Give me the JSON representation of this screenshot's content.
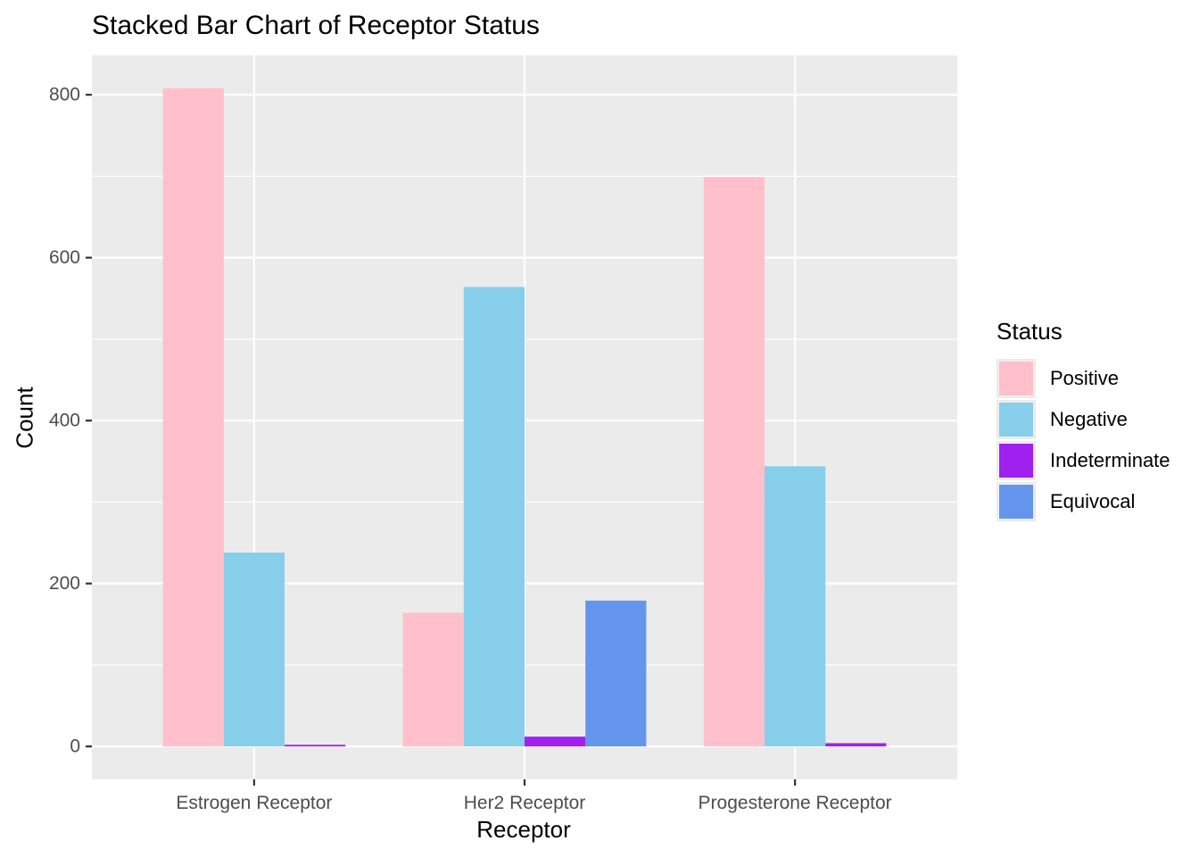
{
  "chart_data": {
    "type": "bar",
    "title": "Stacked Bar Chart of Receptor Status",
    "xlabel": "Receptor",
    "ylabel": "Count",
    "categories": [
      "Estrogen Receptor",
      "Her2 Receptor",
      "Progesterone Receptor"
    ],
    "series": [
      {
        "name": "Positive",
        "color": "#FFC0CB",
        "values": [
          808,
          164,
          699
        ]
      },
      {
        "name": "Negative",
        "color": "#87CEEB",
        "values": [
          238,
          564,
          344
        ]
      },
      {
        "name": "Indeterminate",
        "color": "#A020F0",
        "values": [
          2,
          12,
          4
        ]
      },
      {
        "name": "Equivocal",
        "color": "#6495ED",
        "values": [
          null,
          179,
          null
        ]
      }
    ],
    "ylim": [
      -40.4,
      848.4
    ],
    "yticks": [
      0,
      200,
      400,
      600,
      800
    ],
    "grid": true,
    "legend_title": "Status",
    "legend_position": "right",
    "panel_background": "#EBEBEB"
  }
}
